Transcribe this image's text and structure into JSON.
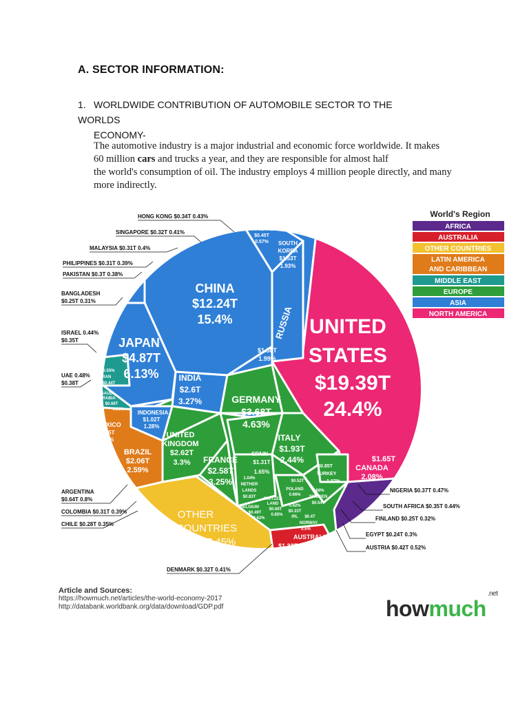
{
  "heading": "A.  SECTOR INFORMATION:",
  "subheading": {
    "number": "1.",
    "line1": "WORLDWIDE CONTRIBUTION OF AUTOMOBILE SECTOR TO THE WORLDS",
    "line2": "ECONOMY-"
  },
  "body": {
    "line1": "The automotive industry is a major industrial and economic force worldwide. It makes",
    "line2_pre": "60 million ",
    "line2_bold": "cars",
    "line2_post": " and trucks a year, and they are responsible for almost half",
    "line3": "the world's consumption of oil. The industry employs 4 million people directly, and many",
    "line4": "more indirectly."
  },
  "legend": {
    "title": "World's Region",
    "items": [
      {
        "label": "AFRICA",
        "color": "#5b2a8c"
      },
      {
        "label": "AUSTRALIA",
        "color": "#d8202a"
      },
      {
        "label": "OTHER COUNTRIES",
        "color": "#f2c12e"
      },
      {
        "label": "LATIN AMERICA AND CARIBBEAN",
        "color": "#e07b1a"
      },
      {
        "label": "MIDDLE EAST",
        "color": "#1f9a8f"
      },
      {
        "label": "EUROPE",
        "color": "#2e9e3a"
      },
      {
        "label": "ASIA",
        "color": "#2f7fd6"
      },
      {
        "label": "NORTH AMERICA",
        "color": "#ec2774"
      }
    ]
  },
  "chart_data": {
    "type": "treemap",
    "title": "",
    "countries": [
      {
        "name": "UNITED STATES",
        "gdp": "$19.39T",
        "pct": "24.4%",
        "region": "NORTH AMERICA"
      },
      {
        "name": "CHINA",
        "gdp": "$12.24T",
        "pct": "15.4%",
        "region": "ASIA"
      },
      {
        "name": "JAPAN",
        "gdp": "$4.87T",
        "pct": "6.13%",
        "region": "ASIA"
      },
      {
        "name": "GERMANY",
        "gdp": "$3.68T",
        "pct": "4.63%",
        "region": "EUROPE"
      },
      {
        "name": "UNITED KINGDOM",
        "gdp": "$2.62T",
        "pct": "3.3%",
        "region": "EUROPE"
      },
      {
        "name": "INDIA",
        "gdp": "$2.6T",
        "pct": "3.27%",
        "region": "ASIA"
      },
      {
        "name": "FRANCE",
        "gdp": "$2.58T",
        "pct": "3.25%",
        "region": "EUROPE"
      },
      {
        "name": "BRAZIL",
        "gdp": "$2.06T",
        "pct": "2.59%",
        "region": "LATIN AMERICA AND CARIBBEAN"
      },
      {
        "name": "ITALY",
        "gdp": "$1.93T",
        "pct": "2.44%",
        "region": "EUROPE"
      },
      {
        "name": "CANADA",
        "gdp": "$1.65T",
        "pct": "2.08%",
        "region": "NORTH AMERICA"
      },
      {
        "name": "RUSSIA",
        "gdp": "$1.58T",
        "pct": "1.99%",
        "region": "EUROPE"
      },
      {
        "name": "SOUTH KOREA",
        "gdp": "$1.53T",
        "pct": "1.93%",
        "region": "ASIA"
      },
      {
        "name": "AUSTRALIA",
        "gdp": "$1.32T",
        "pct": "1.67%",
        "region": "AUSTRALIA"
      },
      {
        "name": "SPAIN",
        "gdp": "$1.31T",
        "pct": "1.65%",
        "region": "EUROPE"
      },
      {
        "name": "MEXICO",
        "gdp": "$1.15T",
        "pct": "1.45%",
        "region": "LATIN AMERICA AND CARIBBEAN"
      },
      {
        "name": "INDONESIA",
        "gdp": "$1.02T",
        "pct": "1.28%",
        "region": "ASIA"
      },
      {
        "name": "TURKEY",
        "gdp": "$0.85T",
        "pct": "1.07%",
        "region": "MIDDLE EAST"
      },
      {
        "name": "NETHERLANDS",
        "gdp": "$0.83T",
        "pct": "1.04%",
        "region": "EUROPE"
      },
      {
        "name": "SAUDI ARABIA",
        "gdp": "$0.68T",
        "pct": "0.86%",
        "region": "MIDDLE EAST"
      },
      {
        "name": "SWITZERLAND",
        "gdp": "$0.68T",
        "pct": "0.85%",
        "region": "EUROPE"
      },
      {
        "name": "ARGENTINA",
        "gdp": "$0.64T",
        "pct": "0.8%",
        "region": "LATIN AMERICA AND CARIBBEAN"
      },
      {
        "name": "SWEDEN",
        "gdp": "$0.54T",
        "pct": "0.68%",
        "region": "EUROPE"
      },
      {
        "name": "POLAND",
        "gdp": "$0.52T",
        "pct": "0.66%",
        "region": "EUROPE"
      },
      {
        "name": "BELGIUM",
        "gdp": "$0.49T",
        "pct": "0.62%",
        "region": "EUROPE"
      },
      {
        "name": "THAILAND",
        "gdp": "$0.45T",
        "pct": "0.57%",
        "region": "ASIA"
      },
      {
        "name": "IRAN",
        "gdp": "$0.44T",
        "pct": "0.55%",
        "region": "MIDDLE EAST"
      },
      {
        "name": "AUSTRIA",
        "gdp": "$0.42T",
        "pct": "0.52%",
        "region": "EUROPE"
      },
      {
        "name": "NORWAY",
        "gdp": "$0.4T",
        "pct": "0.5%",
        "region": "EUROPE"
      },
      {
        "name": "UAE",
        "gdp": "$0.38T",
        "pct": "0.48%",
        "region": "MIDDLE EAST"
      },
      {
        "name": "NIGERIA",
        "gdp": "$0.37T",
        "pct": "0.47%",
        "region": "AFRICA"
      },
      {
        "name": "ISRAEL",
        "gdp": "$0.35T",
        "pct": "0.44%",
        "region": "MIDDLE EAST"
      },
      {
        "name": "SOUTH AFRICA",
        "gdp": "$0.35T",
        "pct": "0.44%",
        "region": "AFRICA"
      },
      {
        "name": "HONG KONG",
        "gdp": "$0.34T",
        "pct": "0.43%",
        "region": "ASIA"
      },
      {
        "name": "IRELAND",
        "gdp": "$0.33T",
        "pct": "0.42%",
        "region": "EUROPE"
      },
      {
        "name": "DENMARK",
        "gdp": "$0.32T",
        "pct": "0.41%",
        "region": "EUROPE"
      },
      {
        "name": "SINGAPORE",
        "gdp": "$0.32T",
        "pct": "0.41%",
        "region": "ASIA"
      },
      {
        "name": "MALAYSIA",
        "gdp": "$0.31T",
        "pct": "0.4%",
        "region": "ASIA"
      },
      {
        "name": "PHILIPPINES",
        "gdp": "$0.31T",
        "pct": "0.39%",
        "region": "ASIA"
      },
      {
        "name": "COLOMBIA",
        "gdp": "$0.31T",
        "pct": "0.39%",
        "region": "LATIN AMERICA AND CARIBBEAN"
      },
      {
        "name": "PAKISTAN",
        "gdp": "$0.3T",
        "pct": "0.38%",
        "region": "ASIA"
      },
      {
        "name": "CHILE",
        "gdp": "$0.28T",
        "pct": "0.35%",
        "region": "LATIN AMERICA AND CARIBBEAN"
      },
      {
        "name": "BANGLADESH",
        "gdp": "$0.25T",
        "pct": "0.31%",
        "region": "ASIA"
      },
      {
        "name": "FINLAND",
        "gdp": "$0.25T",
        "pct": "0.32%",
        "region": "EUROPE"
      },
      {
        "name": "EGYPT",
        "gdp": "$0.24T",
        "pct": "0.3%",
        "region": "AFRICA"
      },
      {
        "name": "OTHER COUNTRIES",
        "gdp": "",
        "pct": "7.45%",
        "region": "OTHER COUNTRIES"
      }
    ]
  },
  "labels": {
    "us": {
      "l1": "UNITED",
      "l2": "STATES",
      "l3": "$19.39T",
      "l4": "24.4%"
    },
    "china": {
      "l1": "CHINA",
      "l2": "$12.24T",
      "l3": "15.4%"
    },
    "japan": {
      "l1": "JAPAN",
      "l2": "$4.87T",
      "l3": "6.13%"
    },
    "germany": {
      "l1": "GERMANY",
      "l2": "$3.68T",
      "l3": "4.63%"
    },
    "uk": {
      "l1": "UNITED",
      "l2": "KINGDOM",
      "l3": "$2.62T",
      "l4": "3.3%"
    },
    "india": {
      "l1": "INDIA",
      "l2": "$2.6T",
      "l3": "3.27%"
    },
    "france": {
      "l1": "FRANCE",
      "l2": "$2.58T",
      "l3": "3.25%"
    },
    "brazil": {
      "l1": "BRAZIL",
      "l2": "$2.06T",
      "l3": "2.59%"
    },
    "italy": {
      "l1": "ITALY",
      "l2": "$1.93T",
      "l3": "2.44%"
    },
    "canada": {
      "l1": "$1.65T",
      "l2": "CANADA",
      "l3": "2.08%"
    },
    "russia": {
      "l1": "RUSSIA"
    },
    "russia_val": {
      "l1": "$1.58T",
      "l2": "1.99%"
    },
    "korea": {
      "l1": "SOUTH",
      "l2": "KOREA",
      "l3": "$1.53T",
      "l4": "1.93%"
    },
    "thailand": {
      "l1": "THAILAND",
      "l2": "$0.45T",
      "l3": "0.57%"
    },
    "australia": {
      "l1": "AUSTRALIA",
      "l2": "$1.32T",
      "l3": "1.67%"
    },
    "spain": {
      "l1": "SPAIN",
      "l2": "$1.31T",
      "l3": "1.65%"
    },
    "mexico": {
      "l1": "MEXICO",
      "l2": "$1.15T",
      "l3": "1.45%"
    },
    "indonesia": {
      "l1": "INDONESIA",
      "l2": "$1.02T",
      "l3": "1.28%"
    },
    "turkey": {
      "l1": "$0.85T",
      "l2": "TURKEY",
      "l3": "1.07%"
    },
    "netherlands": {
      "l1": "1.04%",
      "l2": "NETHER",
      "l3": "LANDS",
      "l4": "$0.83T"
    },
    "saudi": {
      "l1": "SAUDI",
      "l2": "ARABIA",
      "l3": "$0.68T",
      "l4": "0.86%"
    },
    "iran": {
      "l1": "0.55%",
      "l2": "IRAN",
      "l3": "$0.44T"
    },
    "switzerland": {
      "l1": "SWITZER",
      "l2": "LAND",
      "l3": "$0.68T",
      "l4": "0.85%"
    },
    "belgium": {
      "l1": "BELGIUM",
      "l2": "$0.49T",
      "l3": "0.62%"
    },
    "poland": {
      "l1": "$0.52T",
      "l2": "POLAND",
      "l3": "0.66%"
    },
    "sweden": {
      "l1": "0.68%",
      "l2": "SWEDEN",
      "l3": "$0.54T"
    },
    "ireland": {
      "l1": "0.42%",
      "l2": "$0.33T",
      "l3": "IRL"
    },
    "norway": {
      "l1": "$0.4T",
      "l2": "NORWAY",
      "l3": "0.5%"
    },
    "other": {
      "l1": "OTHER",
      "l2": "COUNTRIES",
      "l3": "7.45%"
    }
  },
  "callouts": {
    "hongkong": "HONG KONG  $0.34T  0.43%",
    "singapore": "SINGAPORE  $0.32T  0.41%",
    "malaysia": "MALAYSIA  $0.31T  0.4%",
    "philippines": "PHILIPPINES  $0.31T  0.39%",
    "pakistan": "PAKISTAN  $0.3T  0.38%",
    "bangladesh1": "BANGLADESH",
    "bangladesh2": "$0.25T  0.31%",
    "israel1": "ISRAEL  0.44%",
    "israel2": "$0.35T",
    "uae1": "UAE  0.48%",
    "uae2": "$0.38T",
    "argentina1": "ARGENTINA",
    "argentina2": "$0.64T  0.8%",
    "colombia": "COLOMBIA  $0.31T  0.39%",
    "chile": "CHILE  $0.28T  0.35%",
    "denmark": "DENMARK  $0.32T  0.41%",
    "nigeria": "NIGERIA  $0.37T  0.47%",
    "southafrica": "SOUTH AFRICA  $0.35T  0.44%",
    "finland": "FINLAND  $0.25T   0.32%",
    "egypt": "EGYPT  $0.24T   0.3%",
    "austria": "AUSTRIA  $0.42T  0.52%"
  },
  "sources": {
    "title": "Article and Sources:",
    "line1": "https://howmuch.net/articles/the-world-economy-2017",
    "line2": "http://databank.worldbank.org/data/download/GDP.pdf"
  },
  "logo": {
    "part1": "how",
    "part2": "much",
    "suffix": ".net"
  }
}
